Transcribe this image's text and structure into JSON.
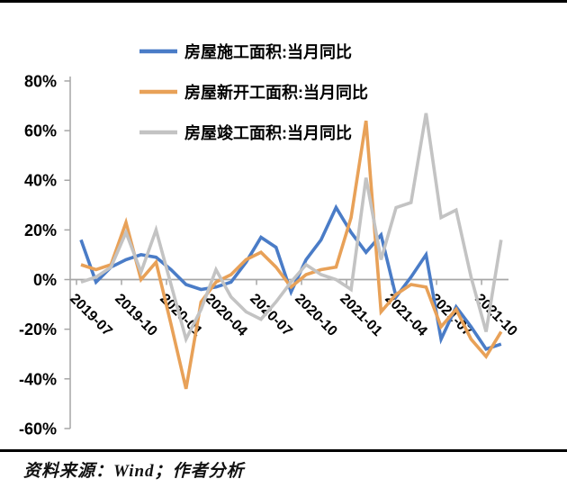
{
  "chart_data": {
    "type": "line",
    "title": "",
    "grid": "none",
    "legend_position": "top-left-stacked",
    "axis_color": "#a6a6a6",
    "background_color": "#ffffff",
    "ylim": [
      -60,
      80
    ],
    "y_ticks": {
      "labels": [
        "80%",
        "60%",
        "40%",
        "20%",
        "0%",
        "-20%",
        "-40%",
        "-60%"
      ],
      "values": [
        80,
        60,
        40,
        20,
        0,
        -20,
        -40,
        -60
      ]
    },
    "categories": [
      "2019-07",
      "2019-08",
      "2019-09",
      "2019-10",
      "2019-11",
      "2019-12",
      "2020-01",
      "2020-02",
      "2020-03",
      "2020-04",
      "2020-05",
      "2020-06",
      "2020-07",
      "2020-08",
      "2020-09",
      "2020-10",
      "2020-11",
      "2020-12",
      "2021-01",
      "2021-02",
      "2021-03",
      "2021-04",
      "2021-05",
      "2021-06",
      "2021-07",
      "2021-08",
      "2021-09",
      "2021-10",
      "2021-11"
    ],
    "x_tick_labels": [
      "2019-07",
      "2019-10",
      "2020-01",
      "2020-04",
      "2020-07",
      "2020-10",
      "2021-01",
      "2021-04",
      "2021-07",
      "2021-10"
    ],
    "series": [
      {
        "name": "房屋施工面积:当月同比",
        "color": "#4a7cc7",
        "values": [
          16,
          -1,
          5,
          8,
          10,
          9,
          4,
          -2,
          -4,
          -3,
          -1,
          7,
          17,
          13,
          -5,
          8,
          16,
          29,
          19,
          11,
          18,
          -7,
          1,
          10,
          -24,
          -11,
          -19,
          -28,
          -26
        ]
      },
      {
        "name": "房屋新开工面积:当月同比",
        "color": "#e8a158",
        "values": [
          6,
          4,
          6,
          23,
          0,
          7,
          -18,
          -44,
          -9,
          -1,
          2,
          8,
          11,
          5,
          -3,
          2,
          4,
          5,
          25,
          64,
          -13,
          -6,
          -2,
          -3,
          -19,
          -12,
          -24,
          -31,
          -21
        ]
      },
      {
        "name": "房屋竣工面积:当月同比",
        "color": "#c3c3c3",
        "values": [
          -1,
          1,
          5,
          19,
          3,
          20,
          -2,
          -24,
          -12,
          4,
          -7,
          -13,
          -16,
          -9,
          -1,
          6,
          2,
          0,
          -4,
          41,
          8,
          29,
          31,
          67,
          25,
          28,
          1,
          -21,
          16
        ]
      }
    ]
  },
  "source_note": "资料来源：Wind；作者分析"
}
